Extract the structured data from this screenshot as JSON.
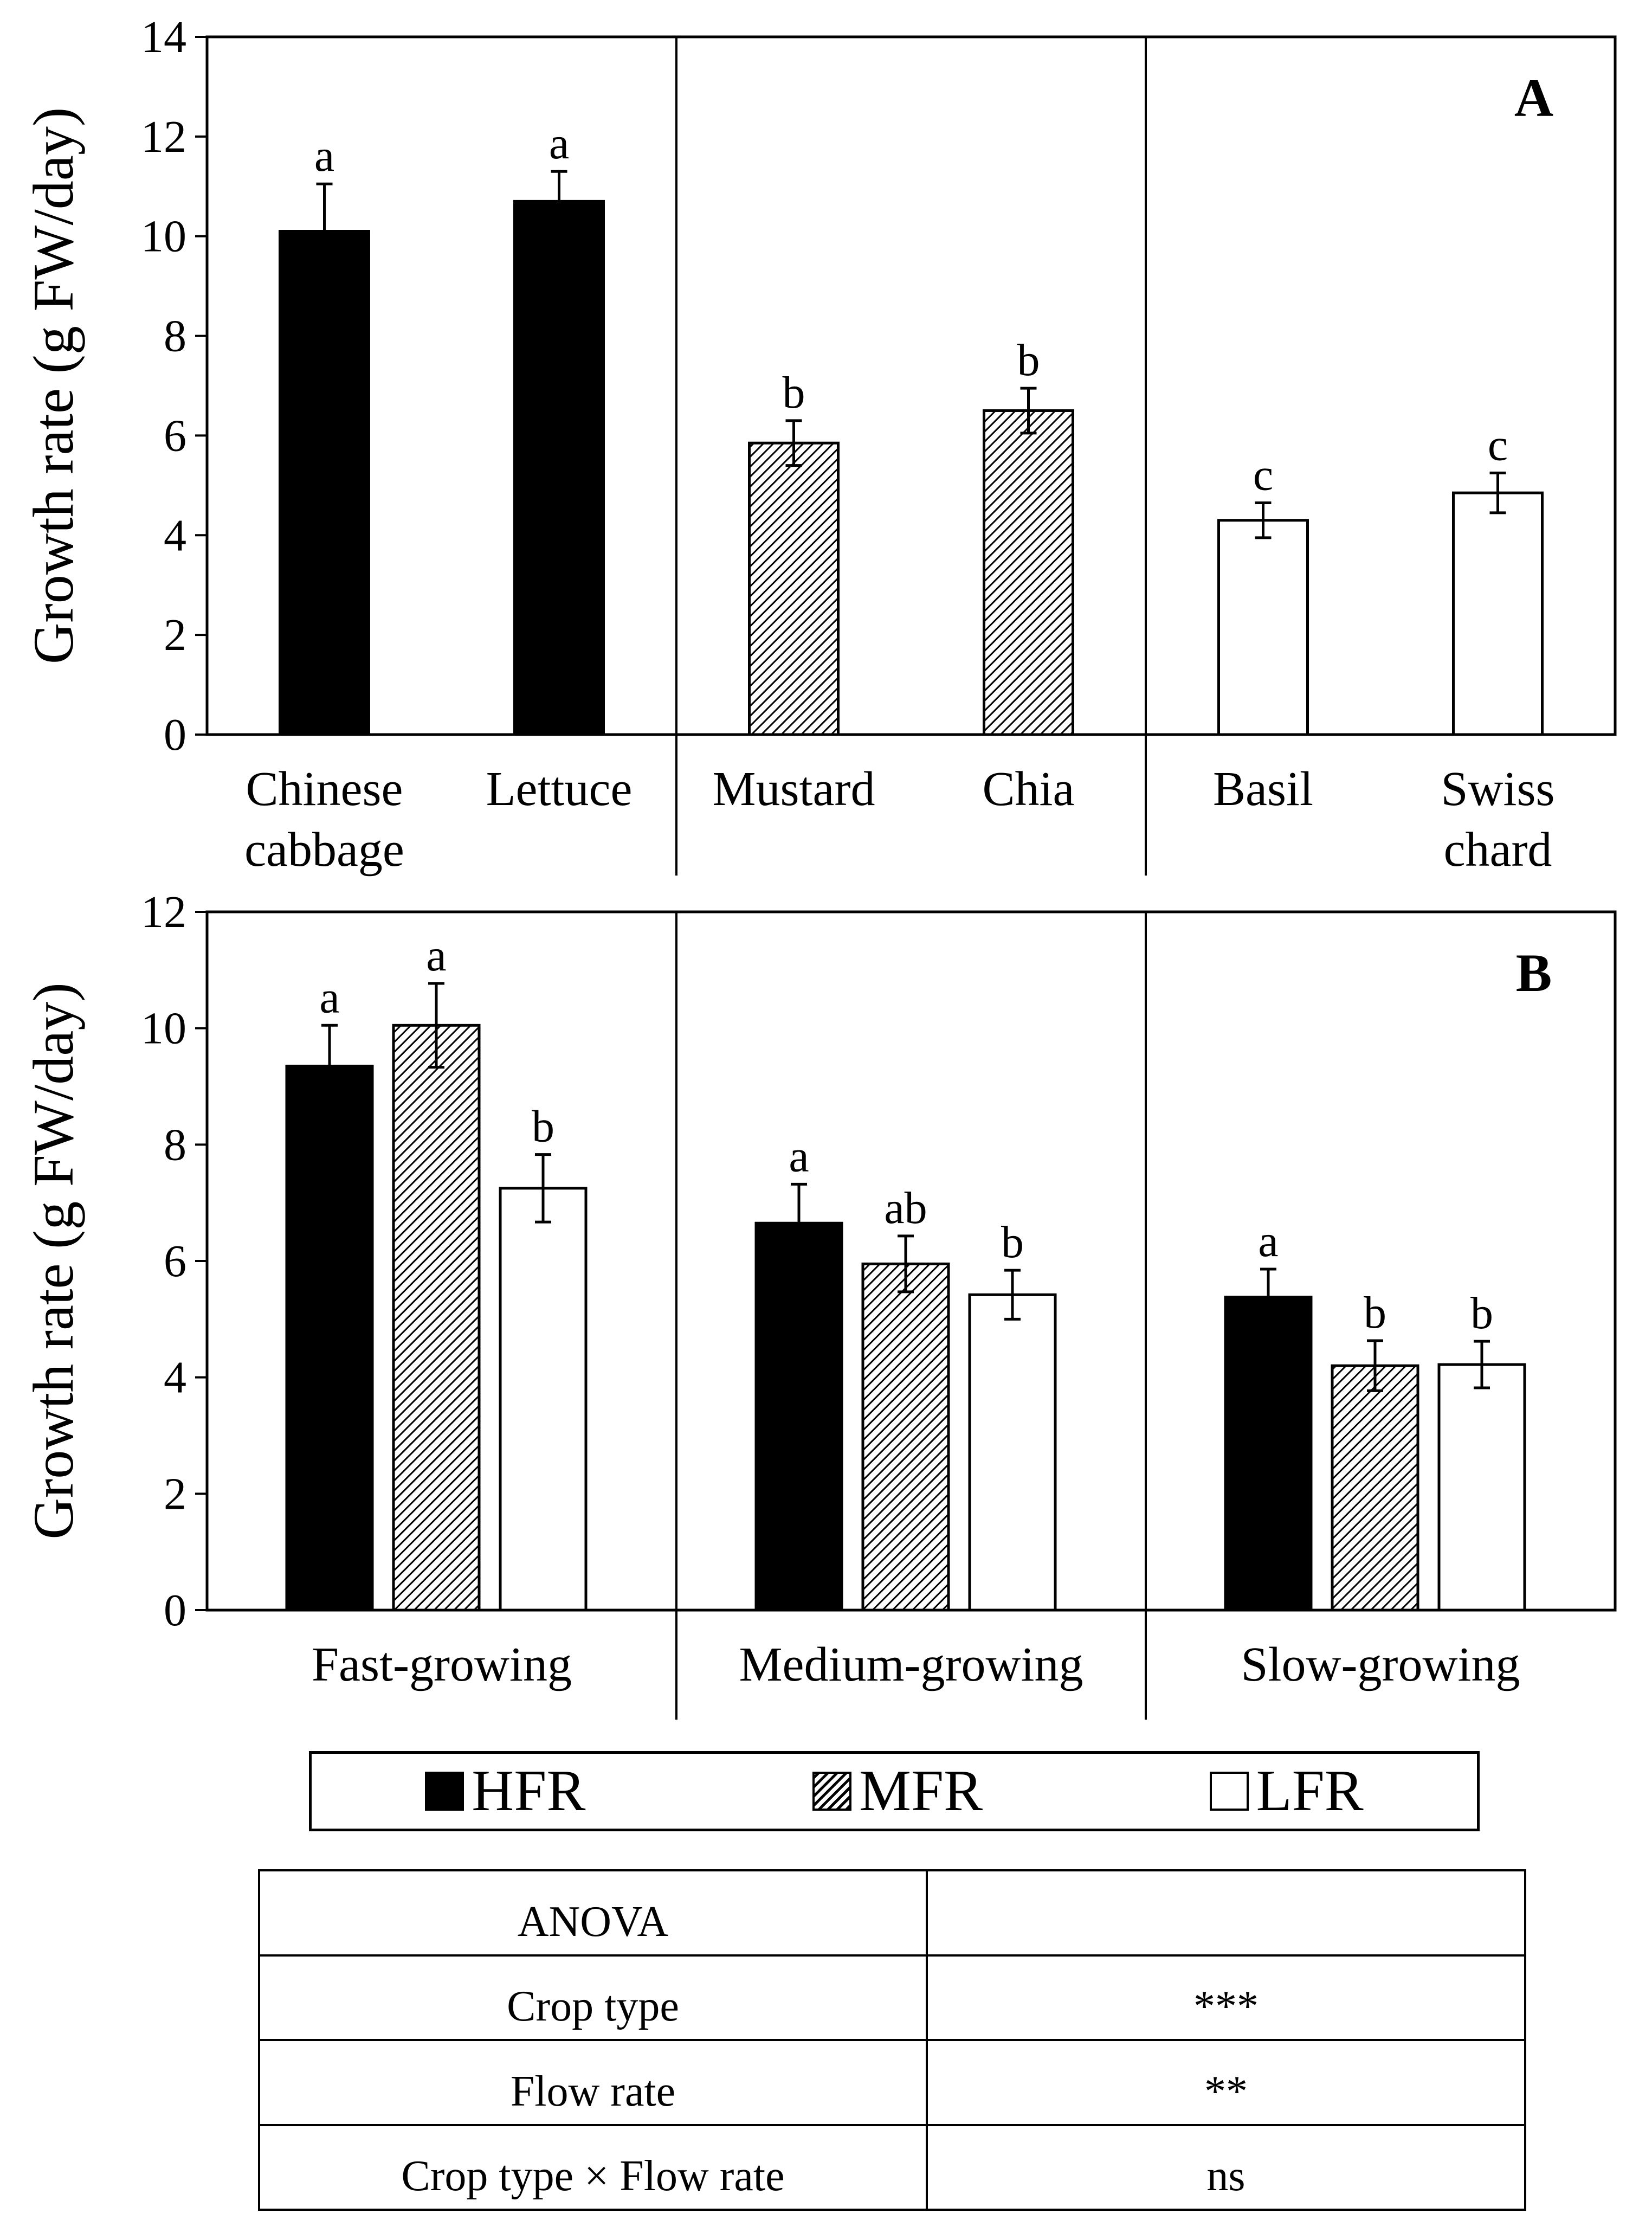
{
  "chart_data": [
    {
      "type": "bar",
      "panel_label": "A",
      "ylabel": "Growth rate (g FW/day)",
      "ylim": [
        0,
        14
      ],
      "yticks": [
        0,
        2,
        4,
        6,
        8,
        10,
        12,
        14
      ],
      "groups": [
        {
          "categories": [
            "Chinese cabbage",
            "Lettuce"
          ],
          "tick_labels": [
            [
              "Chinese",
              "cabbage"
            ],
            [
              "Lettuce"
            ]
          ]
        },
        {
          "categories": [
            "Mustard",
            "Chia"
          ],
          "tick_labels": [
            [
              "Mustard"
            ],
            [
              "Chia"
            ]
          ]
        },
        {
          "categories": [
            "Basil",
            "Swiss chard"
          ],
          "tick_labels": [
            [
              "Basil"
            ],
            [
              "Swiss",
              "chard"
            ]
          ]
        }
      ],
      "bars": [
        {
          "category": "Chinese cabbage",
          "value": 10.1,
          "error": 0.95,
          "letter": "a",
          "fill": "HFR"
        },
        {
          "category": "Lettuce",
          "value": 10.7,
          "error": 0.6,
          "letter": "a",
          "fill": "HFR"
        },
        {
          "category": "Mustard",
          "value": 5.85,
          "error": 0.45,
          "letter": "b",
          "fill": "MFR"
        },
        {
          "category": "Chia",
          "value": 6.5,
          "error": 0.45,
          "letter": "b",
          "fill": "MFR"
        },
        {
          "category": "Basil",
          "value": 4.3,
          "error": 0.35,
          "letter": "c",
          "fill": "LFR"
        },
        {
          "category": "Swiss chard",
          "value": 4.85,
          "error": 0.4,
          "letter": "c",
          "fill": "LFR"
        }
      ]
    },
    {
      "type": "bar",
      "panel_label": "B",
      "ylabel": "Growth rate (g FW/day)",
      "ylim": [
        0,
        12
      ],
      "yticks": [
        0,
        2,
        4,
        6,
        8,
        10,
        12
      ],
      "groups": [
        {
          "name": "Fast-growing",
          "bars": [
            {
              "series": "HFR",
              "value": 9.35,
              "error": 0.7,
              "letter": "a"
            },
            {
              "series": "MFR",
              "value": 10.05,
              "error": 0.72,
              "letter": "a"
            },
            {
              "series": "LFR",
              "value": 7.25,
              "error": 0.58,
              "letter": "b"
            }
          ]
        },
        {
          "name": "Medium-growing",
          "bars": [
            {
              "series": "HFR",
              "value": 6.65,
              "error": 0.67,
              "letter": "a"
            },
            {
              "series": "MFR",
              "value": 5.95,
              "error": 0.48,
              "letter": "ab"
            },
            {
              "series": "LFR",
              "value": 5.42,
              "error": 0.42,
              "letter": "b"
            }
          ]
        },
        {
          "name": "Slow-growing",
          "bars": [
            {
              "series": "HFR",
              "value": 5.38,
              "error": 0.48,
              "letter": "a"
            },
            {
              "series": "MFR",
              "value": 4.2,
              "error": 0.43,
              "letter": "b"
            },
            {
              "series": "LFR",
              "value": 4.22,
              "error": 0.4,
              "letter": "b"
            }
          ]
        }
      ]
    }
  ],
  "legend": {
    "items": [
      "HFR",
      "MFR",
      "LFR"
    ]
  },
  "anova_table": {
    "header": "ANOVA",
    "rows": [
      {
        "factor": "Crop type",
        "significance": "***"
      },
      {
        "factor": "Flow rate",
        "significance": "**"
      },
      {
        "factor": "Crop type × Flow rate",
        "significance": "ns"
      }
    ]
  }
}
